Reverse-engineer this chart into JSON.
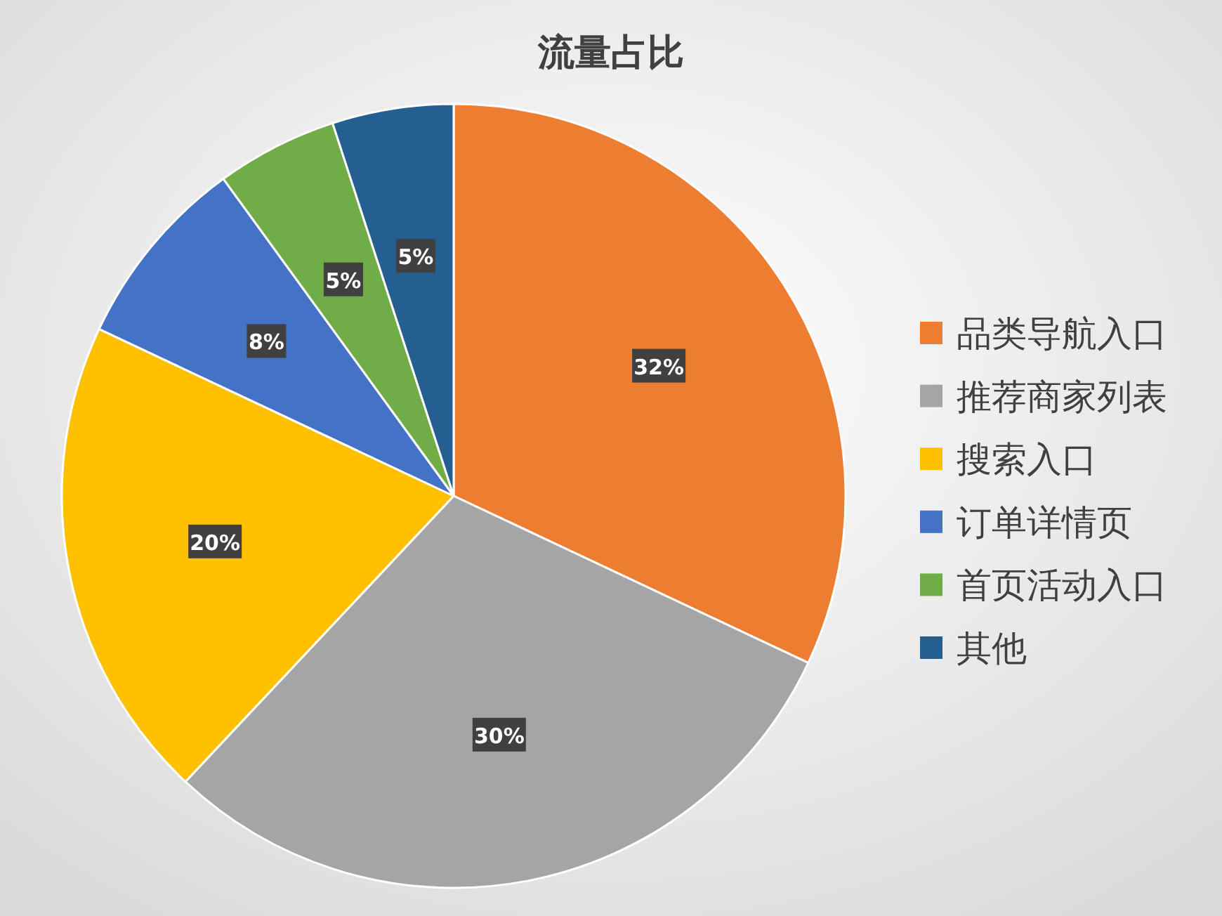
{
  "chart_data": {
    "type": "pie",
    "title": "流量占比",
    "categories": [
      "品类导航入口",
      "推荐商家列表",
      "搜索入口",
      "订单详情页",
      "首页活动入口",
      "其他"
    ],
    "values": [
      32,
      30,
      20,
      8,
      5,
      5
    ],
    "colors": [
      "#ed7d31",
      "#a5a5a5",
      "#ffc000",
      "#4472c4",
      "#70ad47",
      "#255e91"
    ],
    "value_labels": [
      "32%",
      "30%",
      "20%",
      "8%",
      "5%",
      "5%"
    ],
    "legend": "right"
  }
}
